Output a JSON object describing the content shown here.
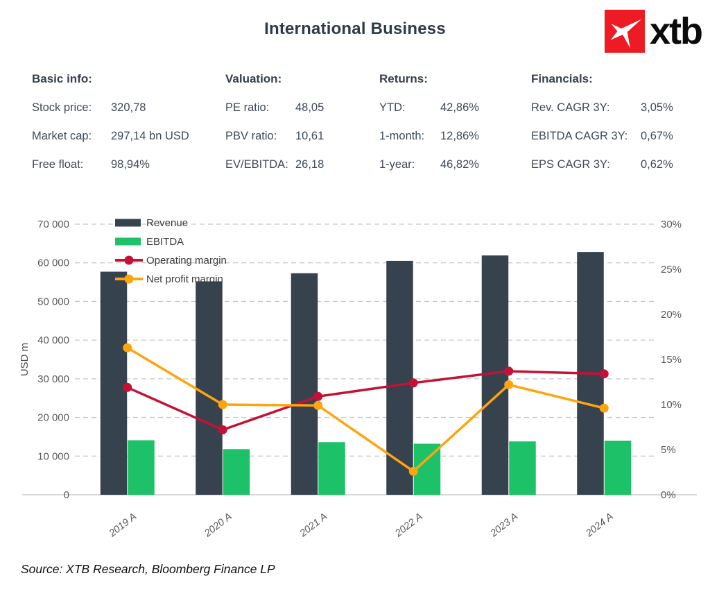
{
  "header": {
    "title": "International Business",
    "logo_text": "xtb",
    "logo_color": "#ed1c24"
  },
  "info": {
    "columns": [
      {
        "title": "Basic info:",
        "rows": [
          {
            "label": "Stock price:",
            "value": "320,78"
          },
          {
            "label": "Market cap:",
            "value": "297,14 bn USD"
          },
          {
            "label": "Free float:",
            "value": "98,94%"
          }
        ]
      },
      {
        "title": "Valuation:",
        "rows": [
          {
            "label": "PE ratio:",
            "value": "48,05"
          },
          {
            "label": "PBV ratio:",
            "value": "10,61"
          },
          {
            "label": "EV/EBITDA:",
            "value": "26,18"
          }
        ]
      },
      {
        "title": "Returns:",
        "rows": [
          {
            "label": "YTD:",
            "value": "42,86%"
          },
          {
            "label": "1-month:",
            "value": "12,86%"
          },
          {
            "label": "1-year:",
            "value": "46,82%"
          }
        ]
      },
      {
        "title": "Financials:",
        "rows": [
          {
            "label": "Rev. CAGR 3Y:",
            "value": "3,05%"
          },
          {
            "label": "EBITDA CAGR 3Y:",
            "value": "0,67%"
          },
          {
            "label": "EPS CAGR 3Y:",
            "value": "0,62%"
          }
        ]
      }
    ]
  },
  "chart_data": {
    "type": "combo_bar_line",
    "categories": [
      "2019 A",
      "2020 A",
      "2021 A",
      "2022 A",
      "2023 A",
      "2024 A"
    ],
    "series": [
      {
        "name": "Revenue",
        "type": "bar",
        "axis": "left",
        "color": "#36424e",
        "values": [
          57700,
          55200,
          57300,
          60500,
          61900,
          62800
        ]
      },
      {
        "name": "EBITDA",
        "type": "bar",
        "axis": "left",
        "color": "#1dc268",
        "values": [
          14100,
          11800,
          13600,
          13200,
          13800,
          14000
        ]
      },
      {
        "name": "Operating margin",
        "type": "line",
        "axis": "right",
        "color": "#c41237",
        "values": [
          11.9,
          7.2,
          10.9,
          12.4,
          13.7,
          13.4
        ]
      },
      {
        "name": "Net profit margin",
        "type": "line",
        "axis": "right",
        "color": "#ffa40f",
        "values": [
          16.3,
          10.0,
          9.9,
          2.6,
          12.2,
          9.6
        ]
      }
    ],
    "ylabel": "USD m",
    "xlabel": "",
    "ylim": [
      0,
      70000
    ],
    "y2lim": [
      0,
      30
    ],
    "y_ticks": [
      "0",
      "10 000",
      "20 000",
      "30 000",
      "40 000",
      "50 000",
      "60 000",
      "70 000"
    ],
    "y2_ticks": [
      "0%",
      "5%",
      "10%",
      "15%",
      "20%",
      "25%",
      "30%"
    ],
    "grid": true,
    "legend_position": "top-left"
  },
  "footer": {
    "source": "Source: XTB Research, Bloomberg Finance LP"
  }
}
